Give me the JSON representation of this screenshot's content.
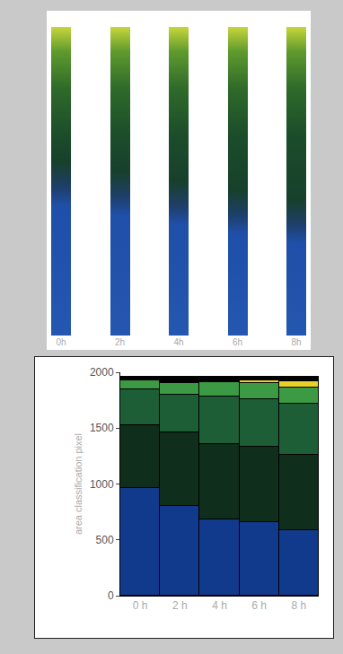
{
  "image_panel": {
    "labels": [
      "0h",
      "2h",
      "4h",
      "6h",
      "8h"
    ]
  },
  "chart_data": {
    "type": "bar",
    "stacked": true,
    "y_label": "area classification pixel",
    "categories": [
      "0 h",
      "2 h",
      "4 h",
      "6 h",
      "8 h"
    ],
    "series": [
      {
        "color": "#123a8c",
        "values": [
          960,
          800,
          680,
          660,
          590
        ]
      },
      {
        "color": "#0f2e1c",
        "values": [
          570,
          660,
          680,
          670,
          670
        ]
      },
      {
        "color": "#1d5e36",
        "values": [
          320,
          340,
          420,
          430,
          460
        ]
      },
      {
        "color": "#3c9a45",
        "values": [
          80,
          100,
          130,
          140,
          140
        ]
      },
      {
        "color": "#e8d22a",
        "values": [
          0,
          0,
          0,
          30,
          60
        ]
      },
      {
        "color": "#000000",
        "values": [
          30,
          60,
          50,
          30,
          40
        ]
      }
    ],
    "ylim": [
      0,
      2000
    ],
    "yticks": [
      0,
      500,
      1000,
      1500,
      2000
    ],
    "grid": false
  }
}
